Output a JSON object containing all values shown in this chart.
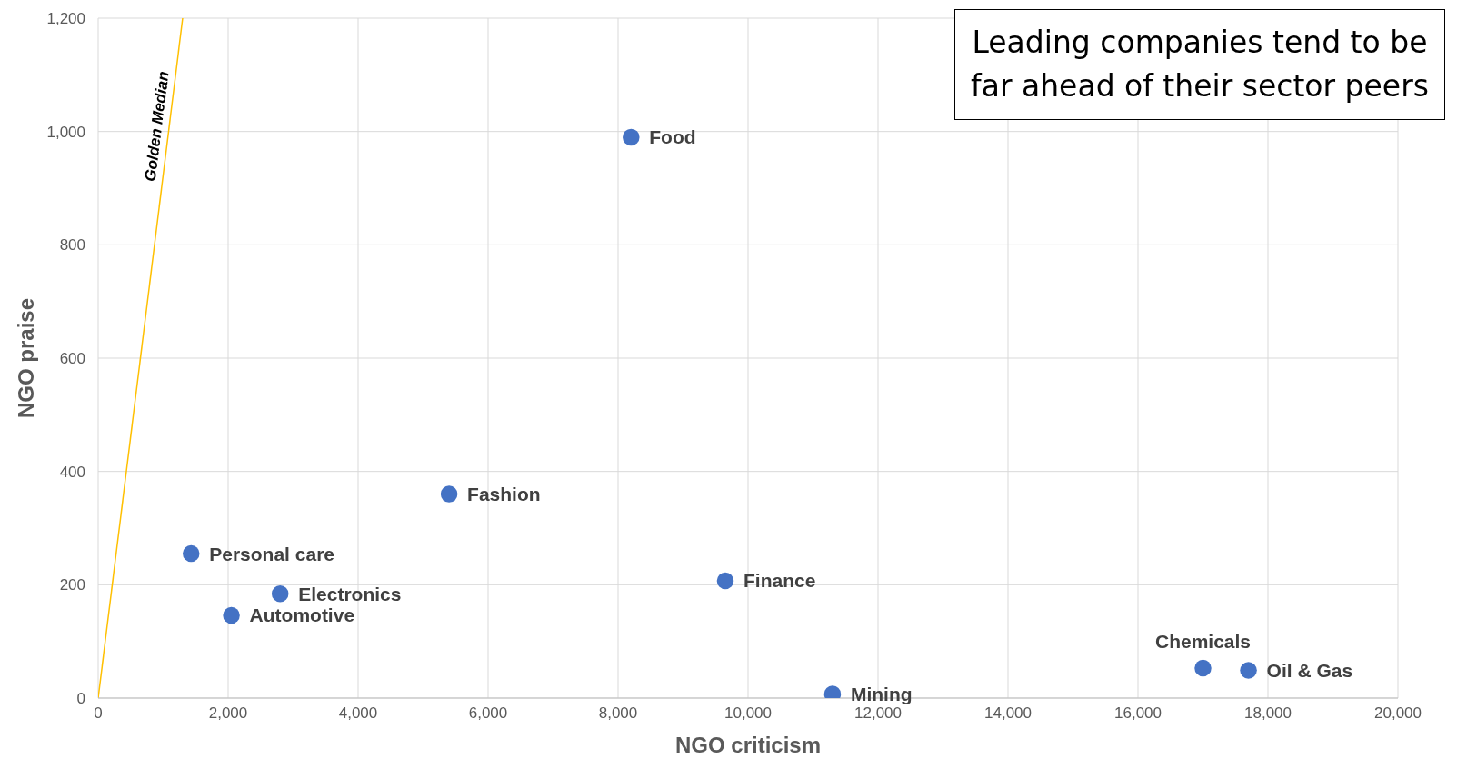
{
  "chart_data": {
    "type": "scatter",
    "xlabel": "NGO criticism",
    "ylabel": "NGO praise",
    "series": [
      {
        "color": "#4472c4",
        "x": [
          8200,
          5400,
          1430,
          2800,
          2050,
          9650,
          11300,
          17000,
          17700
        ],
        "values": [
          990,
          360,
          255,
          184,
          146,
          207,
          7,
          53,
          49
        ]
      },
      {
        "type": "line",
        "marker": "none",
        "name": "Golden Median",
        "color": "#ffc000",
        "x": [
          0,
          1300
        ],
        "values": [
          0,
          1200
        ]
      }
    ],
    "xlim": [
      0,
      20000
    ],
    "ylim": [
      0,
      1200
    ],
    "xticks": [
      0,
      {
        "value": 2000,
        "label": "2,000"
      },
      {
        "value": 4000,
        "label": "4,000"
      },
      {
        "value": 6000,
        "label": "6,000"
      },
      {
        "value": 8000,
        "label": "8,000"
      },
      {
        "value": 10000,
        "label": "10,000"
      },
      {
        "value": 12000,
        "label": "12,000"
      },
      {
        "value": 14000,
        "label": "14,000"
      },
      {
        "value": 16000,
        "label": "16,000"
      },
      {
        "value": 18000,
        "label": "18,000"
      },
      {
        "value": 20000,
        "label": "20,000"
      }
    ],
    "yticks": [
      0,
      200,
      400,
      600,
      800,
      {
        "value": 1000,
        "label": "1,000"
      },
      {
        "value": 1200,
        "label": "1,200"
      }
    ],
    "grid": true,
    "legend": false,
    "marker": "circle",
    "annotations": [
      {
        "text": "Food",
        "x": 8200,
        "y": 990
      },
      {
        "text": "Fashion",
        "x": 5400,
        "y": 360
      },
      {
        "text": "Personal care",
        "x": 1430,
        "y": 255
      },
      {
        "text": "Electronics",
        "x": 2800,
        "y": 184
      },
      {
        "text": "Automotive",
        "x": 2050,
        "y": 146
      },
      {
        "text": "Finance",
        "x": 9650,
        "y": 207
      },
      {
        "text": "Mining",
        "x": 11300,
        "y": 7
      },
      {
        "text": "Chemicals",
        "x": 17000,
        "y": 53
      },
      {
        "text": "Oil & Gas",
        "x": 17700,
        "y": 49
      },
      "Leading companies tend to be far ahead of their sector peers"
    ]
  }
}
